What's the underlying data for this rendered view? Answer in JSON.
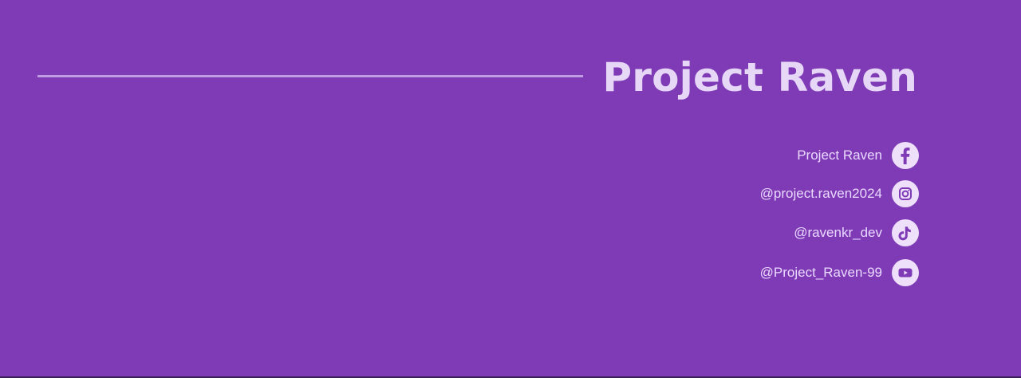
{
  "page": {
    "title": "Project Raven"
  },
  "social": {
    "items": [
      {
        "label": "Project Raven",
        "icon": "facebook-icon"
      },
      {
        "label": "@project.raven2024",
        "icon": "instagram-icon"
      },
      {
        "label": "@ravenkr_dev",
        "icon": "tiktok-icon"
      },
      {
        "label": "@Project_Raven-99",
        "icon": "youtube-icon"
      }
    ]
  },
  "colors": {
    "background": "#7f3bb6",
    "title": "#e6d7f7",
    "divider": "#c9a7e8",
    "icon_circle": "#eee0fb",
    "social_text": "#ead9ff"
  }
}
